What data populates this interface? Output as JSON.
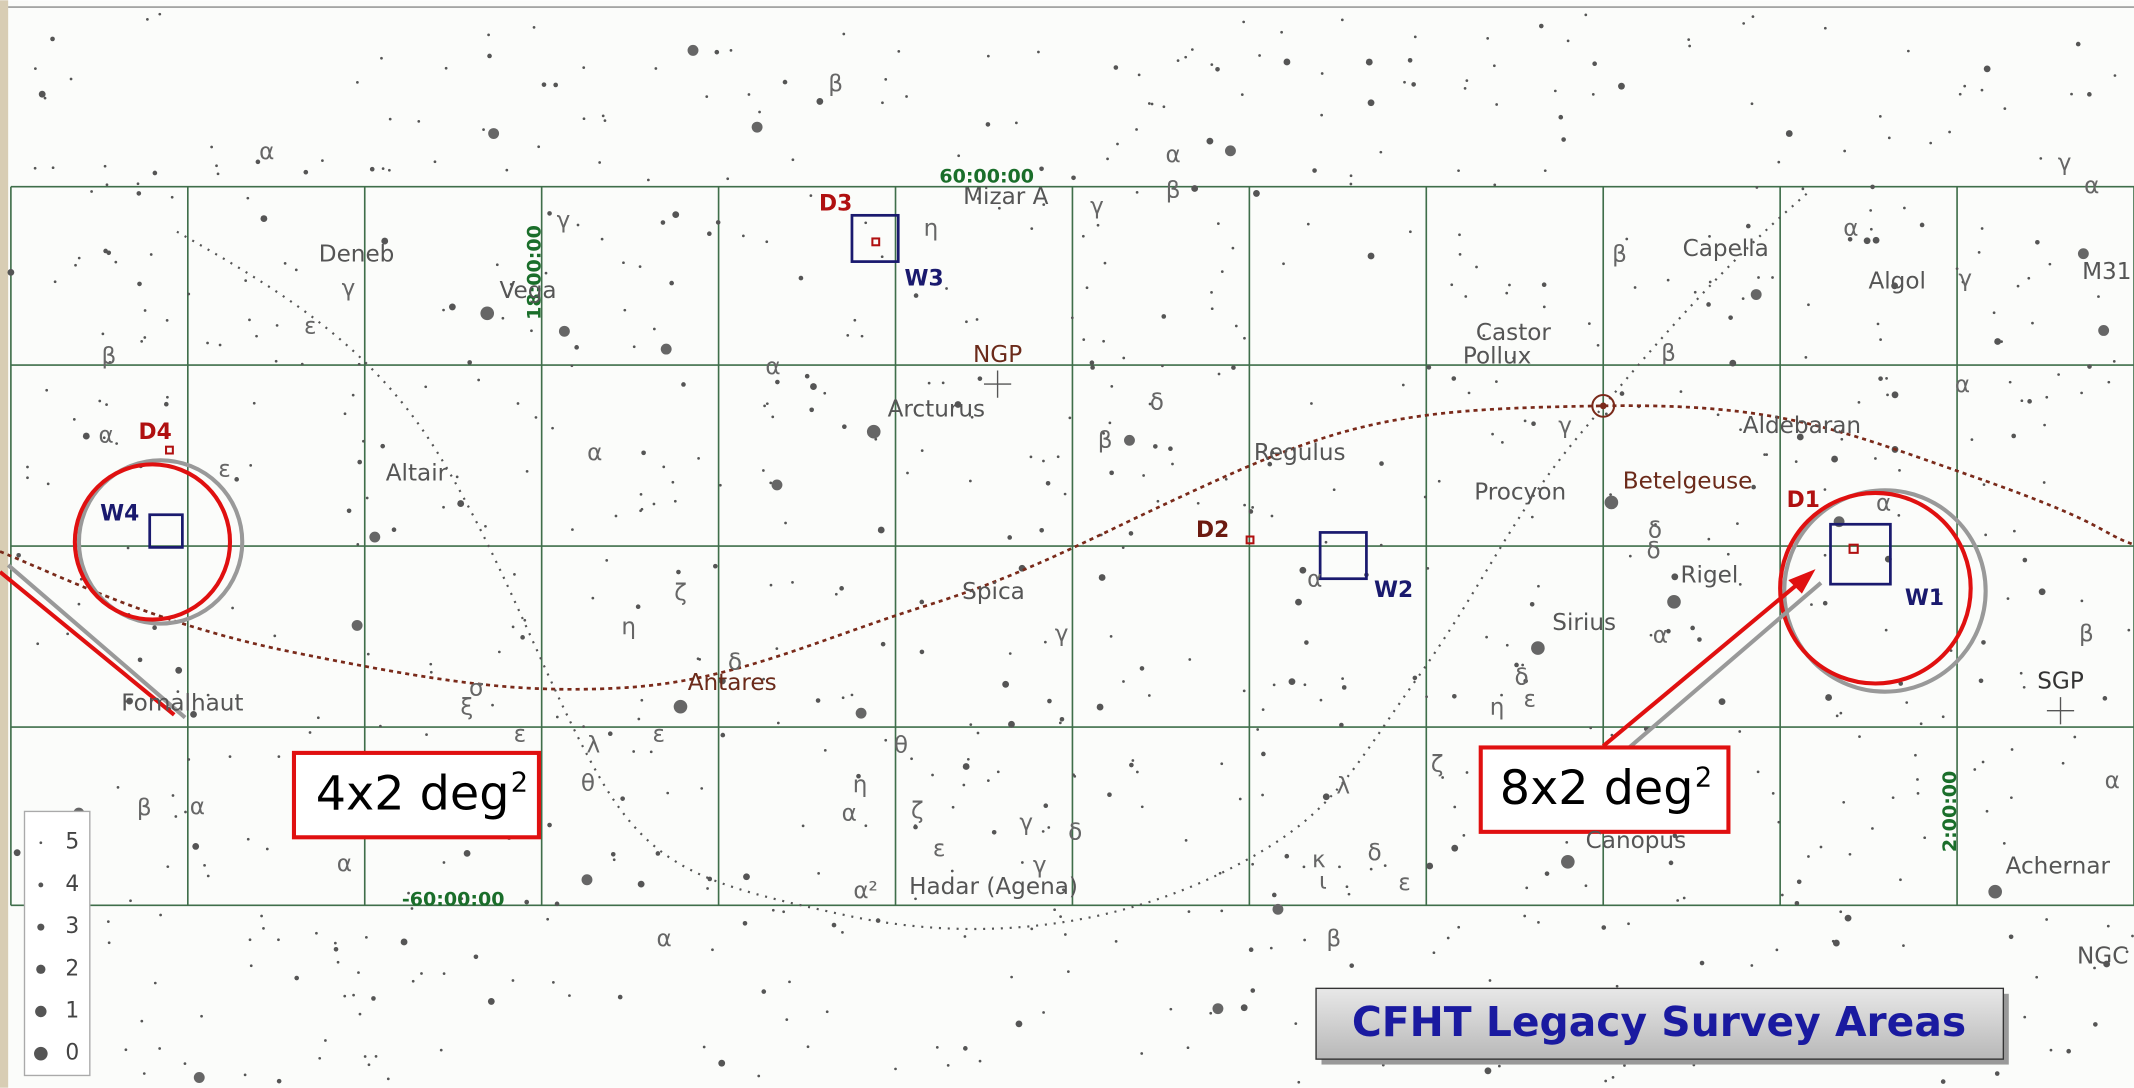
{
  "title": "CFHT Legacy Survey Areas",
  "area_labels": [
    {
      "text": "4x2 deg",
      "superscript": "2"
    },
    {
      "text": "8x2 deg",
      "superscript": "2"
    }
  ],
  "fields": [
    "D1",
    "D2",
    "D3",
    "D4",
    "W1",
    "W2",
    "W3",
    "W4"
  ],
  "poles": [
    "NGP",
    "SGP"
  ],
  "coordinates": [
    "60:00:00",
    "18:00:00",
    "-60:00:00",
    "2:00:00"
  ],
  "stars": [
    "Deneb",
    "Vega",
    "Altair",
    "Fomalhaut",
    "Mizar A",
    "Arcturus",
    "Spica",
    "Antares",
    "Hadar (Agena)",
    "Regulus",
    "Castor",
    "Pollux",
    "Procyon",
    "Capella",
    "Algol",
    "M31",
    "Aldebaran",
    "Betelgeuse",
    "Rigel",
    "Sirius",
    "Canopus",
    "Achernar",
    "NGC"
  ],
  "greek": [
    "β",
    "α",
    "α",
    "β",
    "γ",
    "η",
    "γ",
    "ε",
    "γ",
    "β",
    "α",
    "ε",
    "α",
    "α",
    "δ",
    "β",
    "γ",
    "β",
    "β",
    "α",
    "γ",
    "γ",
    "α",
    "α",
    "α",
    "δ",
    "α",
    "γ",
    "η",
    "ζ",
    "δ",
    "σ",
    "ξ",
    "ε",
    "ε",
    "λ",
    "θ",
    "θ",
    "η",
    "α",
    "ζ",
    "ε",
    "γ",
    "δ",
    "γ",
    "λ",
    "δ",
    "ε",
    "κ",
    "ι",
    "ζ",
    "β",
    "α",
    "α",
    "α",
    "β",
    "β",
    "α",
    "δ",
    "ε",
    "η",
    "α",
    "δ",
    "α²"
  ],
  "magnitude_legend": [
    "5",
    "4",
    "3",
    "2",
    "1",
    "0"
  ]
}
